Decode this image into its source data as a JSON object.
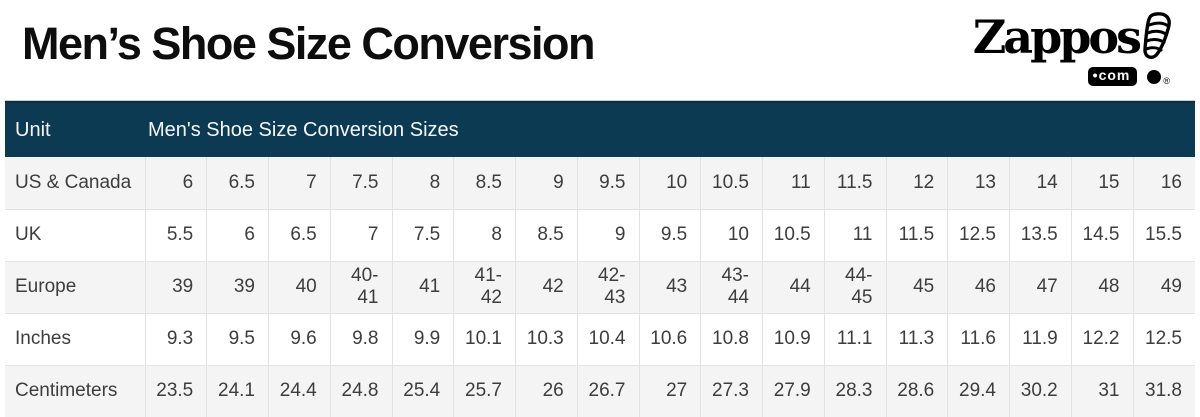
{
  "page": {
    "title": "Men’s Shoe Size Conversion"
  },
  "logo": {
    "brand": "Zappos",
    "shoe_icon": "shoe-exclamation-icon",
    "com_bullet": "•",
    "com": "com",
    "registered": "®"
  },
  "table_header": {
    "unit": "Unit",
    "sizes": "Men's Shoe Size Conversion Sizes"
  },
  "chart_data": {
    "type": "table",
    "title": "Men’s Shoe Size Conversion",
    "header_row": [
      "Unit",
      "Men's Shoe Size Conversion Sizes"
    ],
    "row_labels": [
      "US & Canada",
      "UK",
      "Europe",
      "Inches",
      "Centimeters"
    ],
    "rows": [
      {
        "unit": "US & Canada",
        "values": [
          "6",
          "6.5",
          "7",
          "7.5",
          "8",
          "8.5",
          "9",
          "9.5",
          "10",
          "10.5",
          "11",
          "11.5",
          "12",
          "13",
          "14",
          "15",
          "16"
        ]
      },
      {
        "unit": "UK",
        "values": [
          "5.5",
          "6",
          "6.5",
          "7",
          "7.5",
          "8",
          "8.5",
          "9",
          "9.5",
          "10",
          "10.5",
          "11",
          "11.5",
          "12.5",
          "13.5",
          "14.5",
          "15.5"
        ]
      },
      {
        "unit": "Europe",
        "values": [
          "39",
          "39",
          "40",
          "40-41",
          "41",
          "41-42",
          "42",
          "42-43",
          "43",
          "43-44",
          "44",
          "44-45",
          "45",
          "46",
          "47",
          "48",
          "49"
        ]
      },
      {
        "unit": "Inches",
        "values": [
          "9.3",
          "9.5",
          "9.6",
          "9.8",
          "9.9",
          "10.1",
          "10.3",
          "10.4",
          "10.6",
          "10.8",
          "10.9",
          "11.1",
          "11.3",
          "11.6",
          "11.9",
          "12.2",
          "12.5"
        ]
      },
      {
        "unit": "Centimeters",
        "values": [
          "23.5",
          "24.1",
          "24.4",
          "24.8",
          "25.4",
          "25.7",
          "26",
          "26.7",
          "27",
          "27.3",
          "27.9",
          "28.3",
          "28.6",
          "29.4",
          "30.2",
          "31",
          "31.8"
        ]
      }
    ],
    "grid": true,
    "alternating_row_colors": true
  },
  "colors": {
    "header_bg": "#0b3a52",
    "header_top_border": "#102c3d",
    "header_text": "#f4f8fa",
    "alt_row_bg": "#f4f4f4",
    "row_bg": "#ffffff",
    "cell_border": "#e2e2e2",
    "body_text": "#3d3d3d",
    "title_text": "#0d0d0d",
    "logo_black": "#000000"
  }
}
